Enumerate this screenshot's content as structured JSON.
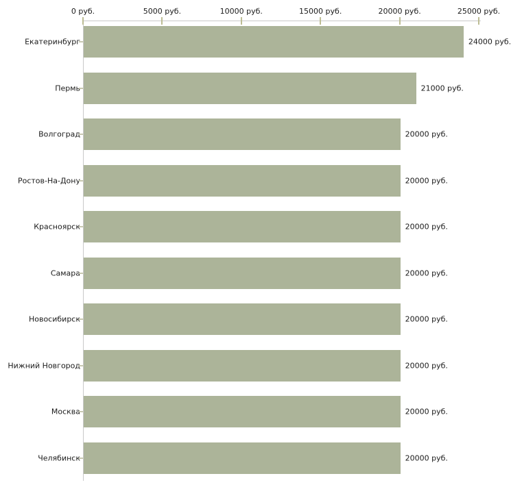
{
  "chart_data": {
    "type": "bar",
    "orientation": "horizontal",
    "title": "",
    "xlabel": "",
    "ylabel": "",
    "unit": "руб.",
    "grid": false,
    "legend": null,
    "xlim": [
      0,
      25000
    ],
    "x_ticks": [
      0,
      5000,
      10000,
      15000,
      20000,
      25000
    ],
    "x_tick_labels": [
      "0 руб.",
      "5000 руб.",
      "10000 руб.",
      "15000 руб.",
      "20000 руб.",
      "25000 руб."
    ],
    "categories": [
      "Екатеринбург",
      "Пермь",
      "Волгоград",
      "Ростов-На-Дону",
      "Красноярск",
      "Самара",
      "Новосибирск",
      "Нижний Новгород",
      "Москва",
      "Челябинск"
    ],
    "values": [
      24000,
      21000,
      20000,
      20000,
      20000,
      20000,
      20000,
      20000,
      20000,
      20000
    ],
    "value_labels": [
      "24000 руб.",
      "21000 руб.",
      "20000 руб.",
      "20000 руб.",
      "20000 руб.",
      "20000 руб.",
      "20000 руб.",
      "20000 руб.",
      "20000 руб.",
      "20000 руб."
    ],
    "colors": {
      "bar": "#acb499",
      "axis_line": "#c8c8c8",
      "tick_mark": "#bdbd94",
      "category_tick": "#c8c8b0",
      "text": "#1a1a1a",
      "background": "#ffffff"
    }
  }
}
